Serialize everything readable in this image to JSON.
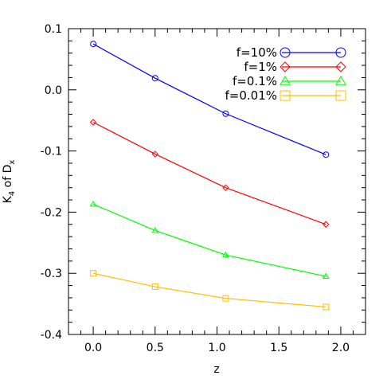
{
  "chart_data": {
    "type": "line",
    "xlabel": "z",
    "ylabel": {
      "main": "K",
      "sub": "4",
      "mid": " of D",
      "sub2": "x"
    },
    "xlim": [
      -0.2,
      2.2
    ],
    "ylim": [
      -0.4,
      0.1
    ],
    "xticks": [
      "0.0",
      "0.5",
      "1.0",
      "1.5",
      "2.0"
    ],
    "yticks": [
      "-0.4",
      "-0.3",
      "-0.2",
      "-0.1",
      "0.0",
      "0.1"
    ],
    "legend_position": "top-right",
    "x": [
      0.0,
      0.5,
      1.07,
      1.88
    ],
    "series": [
      {
        "name": "f=10%",
        "color": "#0000ff",
        "marker": "circle",
        "values": [
          0.075,
          0.019,
          -0.039,
          -0.106
        ]
      },
      {
        "name": "f=1%",
        "color": "#ff0000",
        "marker": "diamond",
        "values": [
          -0.053,
          -0.105,
          -0.16,
          -0.22
        ]
      },
      {
        "name": "f=0.1%",
        "color": "#00ff00",
        "marker": "triangle",
        "values": [
          -0.187,
          -0.23,
          -0.27,
          -0.305
        ]
      },
      {
        "name": "f=0.01%",
        "color": "#ffbf00",
        "marker": "square",
        "values": [
          -0.3,
          -0.322,
          -0.341,
          -0.355
        ]
      }
    ]
  }
}
